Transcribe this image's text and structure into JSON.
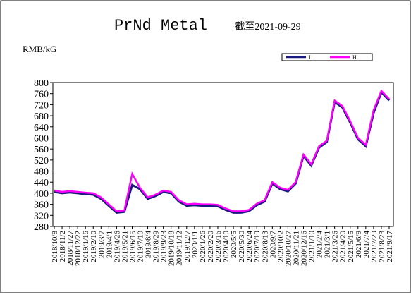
{
  "chart_data": {
    "type": "line",
    "title": "PrNd Metal",
    "subtitle": "截至2021-09-29",
    "y_label": "RMB/kG",
    "categories": [
      "2018/10/8",
      "2018/11/2",
      "2018/11/27",
      "2018/12/22",
      "2019/1/16",
      "2019/2/10",
      "2019/3/7",
      "2019/4/1",
      "2019/4/26",
      "2019/5/21",
      "2019/6/15",
      "2019/7/10",
      "2019/8/4",
      "2019/8/29",
      "2019/9/23",
      "2019/10/18",
      "2019/11/12",
      "2019/12/7",
      "2020/1/1",
      "2020/1/26",
      "2020/2/20",
      "2020/3/16",
      "2020/4/10",
      "2020/5/5",
      "2020/5/30",
      "2020/6/24",
      "2020/7/19",
      "2020/8/13",
      "2020/9/7",
      "2020/10/2",
      "2020/10/27",
      "2020/11/21",
      "2020/12/16",
      "2021/1/10",
      "2021/2/4",
      "2021/3/1",
      "2021/3/26",
      "2021/4/20",
      "2021/5/15",
      "2021/6/9",
      "2021/7/4",
      "2021/7/29",
      "2021/8/23",
      "2021/9/17"
    ],
    "series": [
      {
        "name": "L",
        "color": "#1a1a80",
        "values": [
          405,
          400,
          403,
          400,
          397,
          395,
          380,
          355,
          330,
          333,
          430,
          415,
          380,
          390,
          405,
          400,
          370,
          355,
          357,
          355,
          355,
          353,
          340,
          330,
          330,
          335,
          357,
          370,
          435,
          415,
          407,
          435,
          535,
          500,
          565,
          585,
          730,
          710,
          655,
          595,
          570,
          690,
          765,
          735
        ]
      },
      {
        "name": "H",
        "color": "#ff00ff",
        "values": [
          410,
          405,
          408,
          405,
          402,
          400,
          385,
          360,
          335,
          338,
          470,
          420,
          385,
          395,
          410,
          405,
          375,
          360,
          362,
          360,
          360,
          358,
          345,
          335,
          335,
          340,
          362,
          375,
          440,
          420,
          412,
          440,
          540,
          505,
          570,
          590,
          735,
          715,
          660,
          600,
          575,
          700,
          770,
          740
        ]
      }
    ],
    "ylim": [
      280,
      800
    ],
    "yticks": [
      280,
      320,
      360,
      400,
      440,
      480,
      520,
      560,
      600,
      640,
      680,
      720,
      760,
      800
    ],
    "legend": "top-right"
  }
}
